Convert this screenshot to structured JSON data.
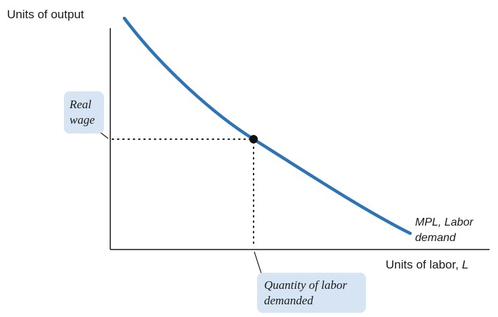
{
  "axes": {
    "y_label": "Units of output",
    "x_label_prefix": "Units of labor, ",
    "x_label_var": "L"
  },
  "curve": {
    "label_line1": "MPL, Labor",
    "label_line2": "demand",
    "color": "#2e74b5"
  },
  "callouts": {
    "real_wage": {
      "line1": "Real",
      "line2": "wage"
    },
    "quantity": {
      "line1": "Quantity of labor",
      "line2": "demanded"
    },
    "box_color": "#d6e4f3"
  },
  "point_color": "#111111"
}
